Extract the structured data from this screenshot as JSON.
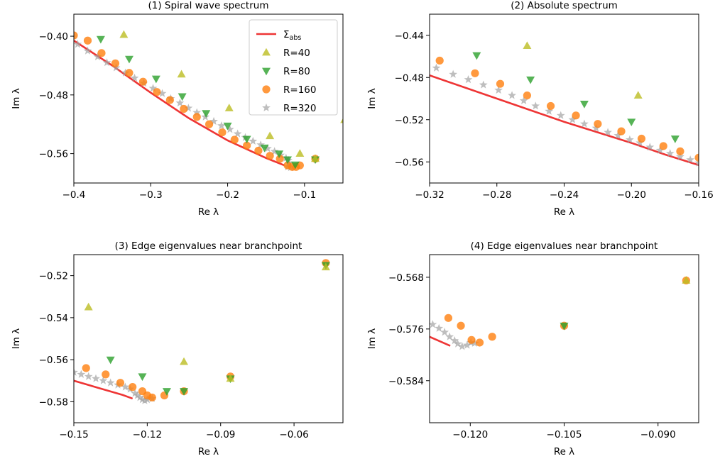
{
  "chart_data": [
    {
      "type": "scatter",
      "title": "(1) Spiral wave spectrum",
      "xlabel": "Re λ",
      "ylabel": "Im λ",
      "xlim": [
        -0.4,
        -0.05
      ],
      "ylim": [
        -0.6,
        -0.37
      ],
      "xticks": [
        -0.4,
        -0.3,
        -0.2,
        -0.1
      ],
      "xtick_labels": [
        "−0.4",
        "−0.3",
        "−0.2",
        "−0.1"
      ],
      "yticks": [
        -0.4,
        -0.48,
        -0.56
      ],
      "ytick_labels": [
        "−0.40",
        "−0.48",
        "−0.56"
      ],
      "grid": false,
      "legend": "top-right",
      "abs_line": [
        [
          -0.4,
          -0.406
        ],
        [
          -0.35,
          -0.44
        ],
        [
          -0.3,
          -0.477
        ],
        [
          -0.25,
          -0.512
        ],
        [
          -0.2,
          -0.542
        ],
        [
          -0.15,
          -0.566
        ],
        [
          -0.126,
          -0.576
        ]
      ],
      "series": [
        {
          "name": "R=40",
          "values": [
            [
              -0.335,
              -0.398
            ],
            [
              -0.26,
              -0.452
            ],
            [
              -0.198,
              -0.498
            ],
            [
              -0.145,
              -0.536
            ],
            [
              -0.106,
              -0.56
            ],
            [
              -0.086,
              -0.567
            ],
            [
              -0.048,
              -0.514
            ]
          ]
        },
        {
          "name": "R=80",
          "values": [
            [
              -0.365,
              -0.404
            ],
            [
              -0.328,
              -0.431
            ],
            [
              -0.293,
              -0.458
            ],
            [
              -0.259,
              -0.482
            ],
            [
              -0.228,
              -0.505
            ],
            [
              -0.2,
              -0.522
            ],
            [
              -0.175,
              -0.54
            ],
            [
              -0.152,
              -0.552
            ],
            [
              -0.133,
              -0.56
            ],
            [
              -0.122,
              -0.568
            ],
            [
              -0.112,
              -0.575
            ],
            [
              -0.086,
              -0.568
            ]
          ]
        },
        {
          "name": "R=160",
          "values": [
            [
              -0.4,
              -0.399
            ],
            [
              -0.382,
              -0.406
            ],
            [
              -0.364,
              -0.423
            ],
            [
              -0.346,
              -0.437
            ],
            [
              -0.328,
              -0.45
            ],
            [
              -0.31,
              -0.462
            ],
            [
              -0.292,
              -0.476
            ],
            [
              -0.275,
              -0.487
            ],
            [
              -0.257,
              -0.499
            ],
            [
              -0.24,
              -0.51
            ],
            [
              -0.224,
              -0.52
            ],
            [
              -0.207,
              -0.531
            ],
            [
              -0.191,
              -0.541
            ],
            [
              -0.175,
              -0.549
            ],
            [
              -0.16,
              -0.556
            ],
            [
              -0.145,
              -0.563
            ],
            [
              -0.132,
              -0.567
            ],
            [
              -0.122,
              -0.576
            ],
            [
              -0.116,
              -0.578
            ],
            [
              -0.111,
              -0.578
            ],
            [
              -0.106,
              -0.576
            ],
            [
              -0.086,
              -0.567
            ]
          ]
        },
        {
          "name": "R=320",
          "values": [
            [
              -0.395,
              -0.411
            ],
            [
              -0.382,
              -0.42
            ],
            [
              -0.369,
              -0.428
            ],
            [
              -0.357,
              -0.436
            ],
            [
              -0.345,
              -0.443
            ],
            [
              -0.333,
              -0.45
            ],
            [
              -0.321,
              -0.457
            ],
            [
              -0.309,
              -0.464
            ],
            [
              -0.297,
              -0.471
            ],
            [
              -0.285,
              -0.478
            ],
            [
              -0.274,
              -0.485
            ],
            [
              -0.262,
              -0.491
            ],
            [
              -0.251,
              -0.498
            ],
            [
              -0.24,
              -0.504
            ],
            [
              -0.229,
              -0.51
            ],
            [
              -0.218,
              -0.516
            ],
            [
              -0.208,
              -0.522
            ],
            [
              -0.197,
              -0.527
            ],
            [
              -0.187,
              -0.533
            ],
            [
              -0.177,
              -0.538
            ],
            [
              -0.167,
              -0.543
            ],
            [
              -0.157,
              -0.548
            ],
            [
              -0.148,
              -0.553
            ],
            [
              -0.139,
              -0.557
            ],
            [
              -0.131,
              -0.562
            ],
            [
              -0.124,
              -0.566
            ],
            [
              -0.121,
              -0.569
            ],
            [
              -0.12,
              -0.573
            ],
            [
              -0.122,
              -0.578
            ],
            [
              -0.118,
              -0.579
            ]
          ]
        }
      ]
    },
    {
      "type": "scatter",
      "title": "(2) Absolute spectrum",
      "xlabel": "Re λ",
      "ylabel": "Im λ",
      "xlim": [
        -0.32,
        -0.16
      ],
      "ylim": [
        -0.58,
        -0.42
      ],
      "xticks": [
        -0.32,
        -0.28,
        -0.24,
        -0.2,
        -0.16
      ],
      "xtick_labels": [
        "−0.32",
        "−0.28",
        "−0.24",
        "−0.20",
        "−0.16"
      ],
      "yticks": [
        -0.44,
        -0.48,
        -0.52,
        -0.56
      ],
      "ytick_labels": [
        "−0.44",
        "−0.48",
        "−0.52",
        "−0.56"
      ],
      "grid": false,
      "abs_line": [
        [
          -0.32,
          -0.478
        ],
        [
          -0.3,
          -0.489
        ],
        [
          -0.28,
          -0.5
        ],
        [
          -0.26,
          -0.511
        ],
        [
          -0.24,
          -0.522
        ],
        [
          -0.22,
          -0.532
        ],
        [
          -0.2,
          -0.542
        ],
        [
          -0.18,
          -0.553
        ],
        [
          -0.16,
          -0.563
        ]
      ],
      "series": [
        {
          "name": "R=40",
          "values": [
            [
              -0.262,
              -0.45
            ],
            [
              -0.196,
              -0.497
            ]
          ]
        },
        {
          "name": "R=80",
          "values": [
            [
              -0.292,
              -0.459
            ],
            [
              -0.26,
              -0.482
            ],
            [
              -0.228,
              -0.505
            ],
            [
              -0.2,
              -0.522
            ],
            [
              -0.174,
              -0.538
            ]
          ]
        },
        {
          "name": "R=160",
          "values": [
            [
              -0.314,
              -0.464
            ],
            [
              -0.293,
              -0.476
            ],
            [
              -0.278,
              -0.486
            ],
            [
              -0.262,
              -0.497
            ],
            [
              -0.248,
              -0.507
            ],
            [
              -0.233,
              -0.516
            ],
            [
              -0.22,
              -0.524
            ],
            [
              -0.206,
              -0.531
            ],
            [
              -0.194,
              -0.538
            ],
            [
              -0.181,
              -0.545
            ],
            [
              -0.171,
              -0.55
            ],
            [
              -0.16,
              -0.556
            ]
          ]
        },
        {
          "name": "R=320",
          "values": [
            [
              -0.316,
              -0.471
            ],
            [
              -0.306,
              -0.477
            ],
            [
              -0.297,
              -0.482
            ],
            [
              -0.288,
              -0.487
            ],
            [
              -0.279,
              -0.492
            ],
            [
              -0.271,
              -0.497
            ],
            [
              -0.264,
              -0.502
            ],
            [
              -0.257,
              -0.507
            ],
            [
              -0.249,
              -0.512
            ],
            [
              -0.242,
              -0.516
            ],
            [
              -0.235,
              -0.52
            ],
            [
              -0.228,
              -0.524
            ],
            [
              -0.221,
              -0.528
            ],
            [
              -0.214,
              -0.532
            ],
            [
              -0.208,
              -0.535
            ],
            [
              -0.201,
              -0.539
            ],
            [
              -0.195,
              -0.542
            ],
            [
              -0.189,
              -0.546
            ],
            [
              -0.183,
              -0.549
            ],
            [
              -0.177,
              -0.552
            ],
            [
              -0.171,
              -0.555
            ],
            [
              -0.165,
              -0.558
            ],
            [
              -0.16,
              -0.561
            ]
          ]
        }
      ]
    },
    {
      "type": "scatter",
      "title": "(3) Edge eigenvalues near branchpoint",
      "xlabel": "Re λ",
      "ylabel": "Im λ",
      "xlim": [
        -0.15,
        -0.04
      ],
      "ylim": [
        -0.59,
        -0.51
      ],
      "xticks": [
        -0.15,
        -0.12,
        -0.09,
        -0.06
      ],
      "xtick_labels": [
        "−0.15",
        "−0.12",
        "−0.09",
        "−0.06"
      ],
      "yticks": [
        -0.52,
        -0.54,
        -0.56,
        -0.58
      ],
      "ytick_labels": [
        "−0.52",
        "−0.54",
        "−0.56",
        "−0.58"
      ],
      "grid": false,
      "abs_line": [
        [
          -0.15,
          -0.57
        ],
        [
          -0.14,
          -0.5734
        ],
        [
          -0.13,
          -0.5768
        ],
        [
          -0.126,
          -0.5785
        ]
      ],
      "series": [
        {
          "name": "R=40",
          "values": [
            [
              -0.144,
              -0.535
            ],
            [
              -0.105,
              -0.561
            ],
            [
              -0.086,
              -0.569
            ],
            [
              -0.047,
              -0.516
            ]
          ]
        },
        {
          "name": "R=80",
          "values": [
            [
              -0.135,
              -0.56
            ],
            [
              -0.122,
              -0.568
            ],
            [
              -0.112,
              -0.575
            ],
            [
              -0.105,
              -0.575
            ],
            [
              -0.086,
              -0.569
            ],
            [
              -0.047,
              -0.515
            ]
          ]
        },
        {
          "name": "R=160",
          "values": [
            [
              -0.145,
              -0.564
            ],
            [
              -0.137,
              -0.567
            ],
            [
              -0.131,
              -0.571
            ],
            [
              -0.126,
              -0.573
            ],
            [
              -0.122,
              -0.575
            ],
            [
              -0.12,
              -0.577
            ],
            [
              -0.118,
              -0.578
            ],
            [
              -0.113,
              -0.577
            ],
            [
              -0.105,
              -0.575
            ],
            [
              -0.086,
              -0.568
            ],
            [
              -0.047,
              -0.514
            ]
          ]
        },
        {
          "name": "R=320",
          "values": [
            [
              -0.15,
              -0.566
            ],
            [
              -0.147,
              -0.567
            ],
            [
              -0.144,
              -0.568
            ],
            [
              -0.141,
              -0.569
            ],
            [
              -0.138,
              -0.57
            ],
            [
              -0.135,
              -0.571
            ],
            [
              -0.132,
              -0.572
            ],
            [
              -0.129,
              -0.573
            ],
            [
              -0.127,
              -0.574
            ],
            [
              -0.125,
              -0.576
            ],
            [
              -0.124,
              -0.577
            ],
            [
              -0.123,
              -0.578
            ],
            [
              -0.122,
              -0.579
            ],
            [
              -0.121,
              -0.5795
            ],
            [
              -0.12,
              -0.579
            ],
            [
              -0.118,
              -0.5785
            ]
          ]
        }
      ]
    },
    {
      "type": "scatter",
      "title": "(4) Edge eigenvalues near branchpoint",
      "xlabel": "Re λ",
      "ylabel": "Im λ",
      "xlim": [
        -0.1265,
        -0.0835
      ],
      "ylim": [
        -0.5905,
        -0.5645
      ],
      "xticks": [
        -0.12,
        -0.105,
        -0.09
      ],
      "xtick_labels": [
        "−0.120",
        "−0.105",
        "−0.090"
      ],
      "yticks": [
        -0.568,
        -0.576,
        -0.584
      ],
      "ytick_labels": [
        "−0.568",
        "−0.576",
        "−0.584"
      ],
      "grid": false,
      "abs_line": [
        [
          -0.1265,
          -0.5772
        ],
        [
          -0.1232,
          -0.5786
        ]
      ],
      "series": [
        {
          "name": "R=40",
          "values": [
            [
              -0.0855,
              -0.5685
            ]
          ]
        },
        {
          "name": "R=80",
          "values": [
            [
              -0.105,
              -0.5755
            ]
          ]
        },
        {
          "name": "R=160",
          "values": [
            [
              -0.1235,
              -0.5743
            ],
            [
              -0.1215,
              -0.5755
            ],
            [
              -0.1198,
              -0.5777
            ],
            [
              -0.1185,
              -0.5781
            ],
            [
              -0.1165,
              -0.5772
            ],
            [
              -0.105,
              -0.5755
            ],
            [
              -0.0855,
              -0.5685
            ]
          ]
        },
        {
          "name": "R=320",
          "values": [
            [
              -0.126,
              -0.5753
            ],
            [
              -0.125,
              -0.5759
            ],
            [
              -0.1241,
              -0.5765
            ],
            [
              -0.1233,
              -0.5772
            ],
            [
              -0.1225,
              -0.5778
            ],
            [
              -0.122,
              -0.5783
            ],
            [
              -0.1213,
              -0.5787
            ],
            [
              -0.1205,
              -0.5785
            ],
            [
              -0.1199,
              -0.5781
            ],
            [
              -0.1193,
              -0.5782
            ]
          ]
        }
      ]
    }
  ],
  "legend": {
    "abs_label": "Σ",
    "abs_sub": "abs",
    "entries": [
      "R=40",
      "R=80",
      "R=160",
      "R=320"
    ]
  },
  "colors": {
    "abs": "#ee3535",
    "R=40": "#bcbd22",
    "R=80": "#2ca02c",
    "R=160": "#ff7f0e",
    "R=320": "#a3a3a3"
  }
}
